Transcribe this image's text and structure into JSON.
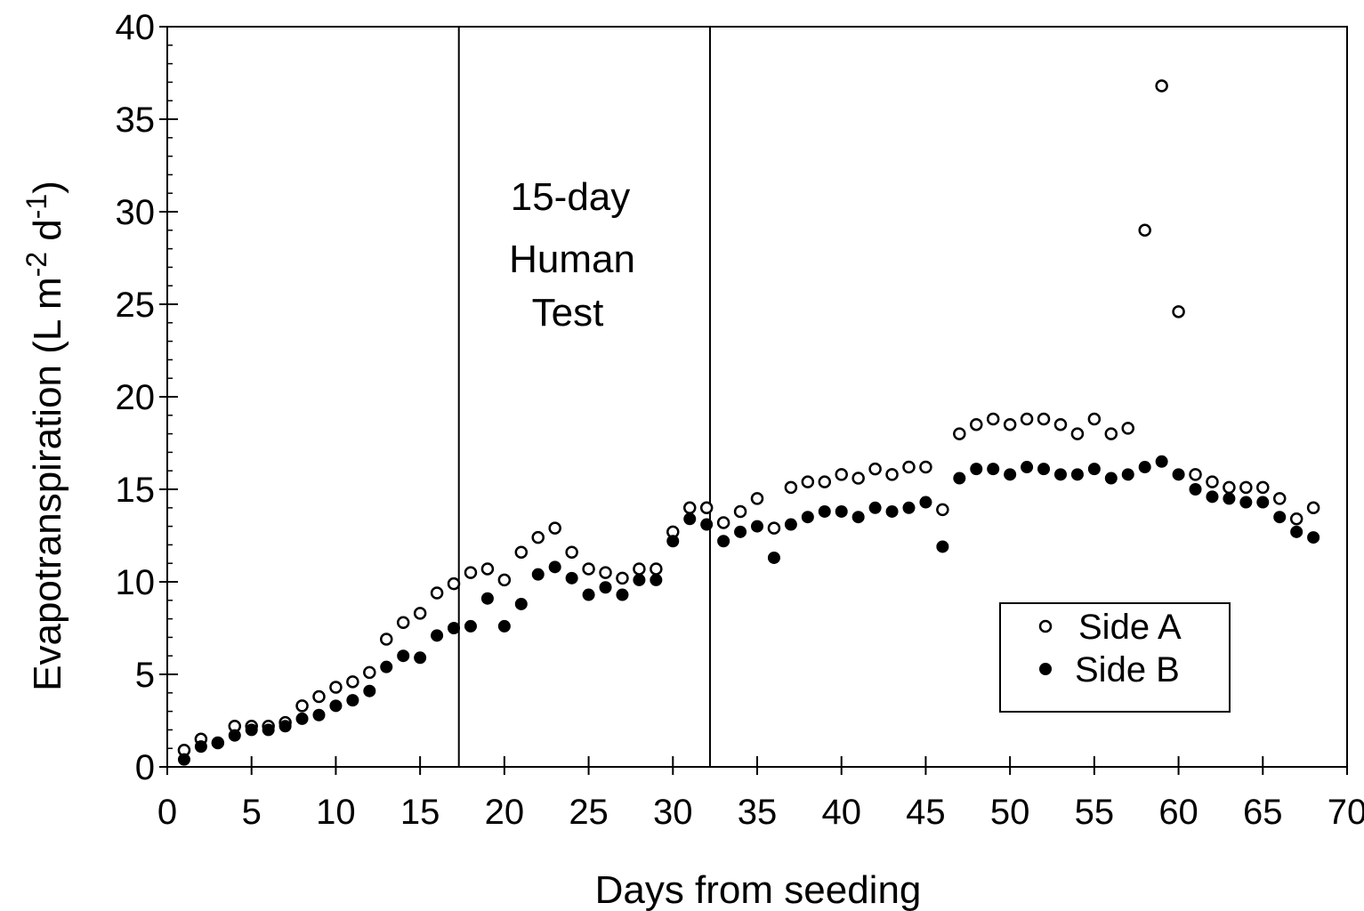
{
  "chart_data": {
    "type": "scatter",
    "xlabel": "Days from seeding",
    "ylabel": {
      "parts": [
        "Evapotranspiration (L m",
        "-2",
        " d",
        "-1",
        ")"
      ]
    },
    "xlim": [
      0,
      70
    ],
    "ylim": [
      0,
      40
    ],
    "xticks": [
      0,
      5,
      10,
      15,
      20,
      25,
      30,
      35,
      40,
      45,
      50,
      55,
      60,
      65,
      70
    ],
    "yticks": [
      0,
      5,
      10,
      15,
      20,
      25,
      30,
      35,
      40
    ],
    "grid": false,
    "legend_position": "lower-right",
    "vertical_lines": [
      17.3,
      32.2
    ],
    "annotation": [
      "15-day",
      "Human",
      "Test"
    ],
    "series": [
      {
        "name": "Side A",
        "marker": "open-circle",
        "points": [
          [
            1,
            0.9
          ],
          [
            2,
            1.5
          ],
          [
            3,
            1.3
          ],
          [
            4,
            2.2
          ],
          [
            5,
            2.2
          ],
          [
            6,
            2.2
          ],
          [
            7,
            2.4
          ],
          [
            8,
            3.3
          ],
          [
            9,
            3.8
          ],
          [
            10,
            4.3
          ],
          [
            11,
            4.6
          ],
          [
            12,
            5.1
          ],
          [
            13,
            6.9
          ],
          [
            14,
            7.8
          ],
          [
            15,
            8.3
          ],
          [
            16,
            9.4
          ],
          [
            17,
            9.9
          ],
          [
            18,
            10.5
          ],
          [
            19,
            10.7
          ],
          [
            20,
            10.1
          ],
          [
            21,
            11.6
          ],
          [
            22,
            12.4
          ],
          [
            23,
            12.9
          ],
          [
            24,
            11.6
          ],
          [
            25,
            10.7
          ],
          [
            26,
            10.5
          ],
          [
            27,
            10.2
          ],
          [
            28,
            10.7
          ],
          [
            29,
            10.7
          ],
          [
            30,
            12.7
          ],
          [
            31,
            14.0
          ],
          [
            32,
            14.0
          ],
          [
            33,
            13.2
          ],
          [
            34,
            13.8
          ],
          [
            35,
            14.5
          ],
          [
            36,
            12.9
          ],
          [
            37,
            15.1
          ],
          [
            38,
            15.4
          ],
          [
            39,
            15.4
          ],
          [
            40,
            15.8
          ],
          [
            41,
            15.6
          ],
          [
            42,
            16.1
          ],
          [
            43,
            15.8
          ],
          [
            44,
            16.2
          ],
          [
            45,
            16.2
          ],
          [
            46,
            13.9
          ],
          [
            47,
            18.0
          ],
          [
            48,
            18.5
          ],
          [
            49,
            18.8
          ],
          [
            50,
            18.5
          ],
          [
            51,
            18.8
          ],
          [
            52,
            18.8
          ],
          [
            53,
            18.5
          ],
          [
            54,
            18.0
          ],
          [
            55,
            18.8
          ],
          [
            56,
            18.0
          ],
          [
            57,
            18.3
          ],
          [
            58,
            29.0
          ],
          [
            59,
            36.8
          ],
          [
            60,
            24.6
          ],
          [
            61,
            15.8
          ],
          [
            62,
            15.4
          ],
          [
            63,
            15.1
          ],
          [
            64,
            15.1
          ],
          [
            65,
            15.1
          ],
          [
            66,
            14.5
          ],
          [
            67,
            13.4
          ],
          [
            68,
            14.0
          ]
        ]
      },
      {
        "name": "Side B",
        "marker": "filled-circle",
        "points": [
          [
            1,
            0.4
          ],
          [
            2,
            1.1
          ],
          [
            3,
            1.3
          ],
          [
            4,
            1.7
          ],
          [
            5,
            2.0
          ],
          [
            6,
            2.0
          ],
          [
            7,
            2.2
          ],
          [
            8,
            2.6
          ],
          [
            9,
            2.8
          ],
          [
            10,
            3.3
          ],
          [
            11,
            3.6
          ],
          [
            12,
            4.1
          ],
          [
            13,
            5.4
          ],
          [
            14,
            6.0
          ],
          [
            15,
            5.9
          ],
          [
            16,
            7.1
          ],
          [
            17,
            7.5
          ],
          [
            18,
            7.6
          ],
          [
            19,
            9.1
          ],
          [
            20,
            7.6
          ],
          [
            21,
            8.8
          ],
          [
            22,
            10.4
          ],
          [
            23,
            10.8
          ],
          [
            24,
            10.2
          ],
          [
            25,
            9.3
          ],
          [
            26,
            9.7
          ],
          [
            27,
            9.3
          ],
          [
            28,
            10.1
          ],
          [
            29,
            10.1
          ],
          [
            30,
            12.2
          ],
          [
            31,
            13.4
          ],
          [
            32,
            13.1
          ],
          [
            33,
            12.2
          ],
          [
            34,
            12.7
          ],
          [
            35,
            13.0
          ],
          [
            36,
            11.3
          ],
          [
            37,
            13.1
          ],
          [
            38,
            13.5
          ],
          [
            39,
            13.8
          ],
          [
            40,
            13.8
          ],
          [
            41,
            13.5
          ],
          [
            42,
            14.0
          ],
          [
            43,
            13.8
          ],
          [
            44,
            14.0
          ],
          [
            45,
            14.3
          ],
          [
            46,
            11.9
          ],
          [
            47,
            15.6
          ],
          [
            48,
            16.1
          ],
          [
            49,
            16.1
          ],
          [
            50,
            15.8
          ],
          [
            51,
            16.2
          ],
          [
            52,
            16.1
          ],
          [
            53,
            15.8
          ],
          [
            54,
            15.8
          ],
          [
            55,
            16.1
          ],
          [
            56,
            15.6
          ],
          [
            57,
            15.8
          ],
          [
            58,
            16.2
          ],
          [
            59,
            16.5
          ],
          [
            60,
            15.8
          ],
          [
            61,
            15.0
          ],
          [
            62,
            14.6
          ],
          [
            63,
            14.5
          ],
          [
            64,
            14.3
          ],
          [
            65,
            14.3
          ],
          [
            66,
            13.5
          ],
          [
            67,
            12.7
          ],
          [
            68,
            12.4
          ]
        ]
      }
    ]
  }
}
